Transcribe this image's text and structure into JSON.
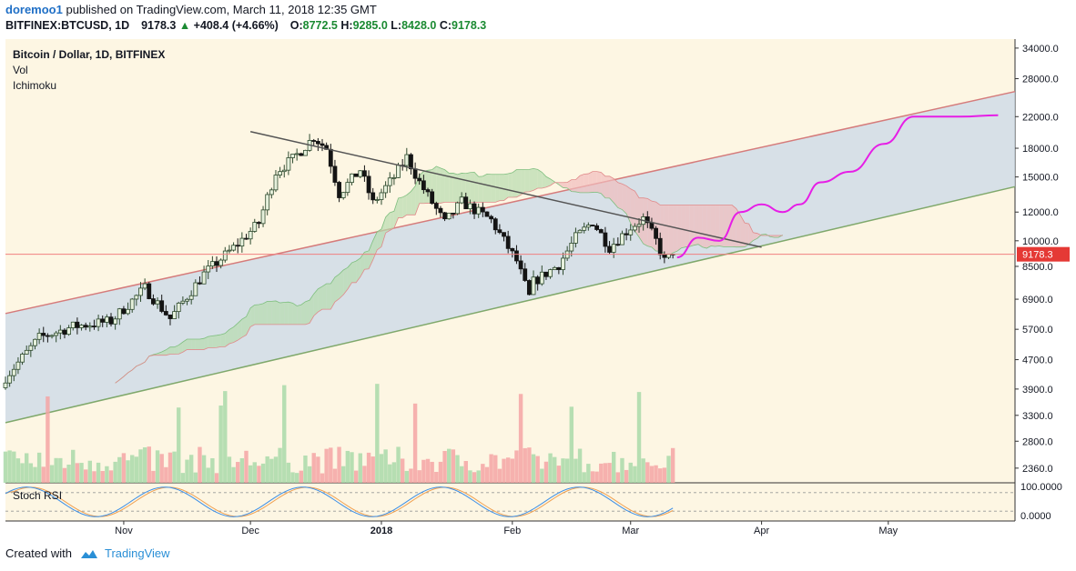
{
  "header": {
    "user": "doremoo1",
    "published": "published on TradingView.com, March 11, 2018 12:35 GMT",
    "symbol": "BITFINEX:BTCUSD, 1D",
    "last": "9178.3",
    "change": "+408.4 (+4.66%)",
    "open_label": "O:",
    "open": "8772.5",
    "high_label": "H:",
    "high": "9285.0",
    "low_label": "L:",
    "low": "8428.0",
    "close_label": "C:",
    "close": "9178.3"
  },
  "legend": {
    "title": "Bitcoin / Dollar, 1D, BITFINEX",
    "indicator1": "Vol",
    "indicator2": "Ichimoku"
  },
  "oscillator": {
    "label": "Stoch RSI",
    "top_label": "100.0000",
    "bottom_label": "0.0000"
  },
  "footer": {
    "created": "Created with",
    "brand": "TradingView"
  },
  "colors": {
    "background": "#fdf6e3",
    "up_candle": "#2e4a2e",
    "down_candle": "#141414",
    "channel_fill": "#c9d8e8",
    "channel_upper": "#d57b7b",
    "channel_lower": "#7fa86b",
    "downtrend_line": "#555555",
    "cloud_bull": "#b7dcae",
    "cloud_bear": "#f1bcbc",
    "projection": "#e61ee6",
    "price_line": "#f08080",
    "vol_up": "#a9d9a9",
    "vol_down": "#f4a5a5",
    "stoch_k": "#3b8ee6",
    "stoch_d": "#f0a050"
  },
  "chart_data": {
    "type": "candlestick",
    "scale": "log",
    "y_tick_labels": [
      34000,
      28000,
      22000,
      18000,
      15000,
      12000,
      10000,
      8500,
      6900,
      5700,
      4700,
      3900,
      3300,
      2800,
      2360
    ],
    "ylim": [
      2150,
      36000
    ],
    "x_labels": [
      {
        "label": "Nov",
        "date": "2017-11-01"
      },
      {
        "label": "Dec",
        "date": "2017-12-01"
      },
      {
        "label": "2018",
        "date": "2018-01-01"
      },
      {
        "label": "Feb",
        "date": "2018-02-01"
      },
      {
        "label": "Mar",
        "date": "2018-03-01"
      },
      {
        "label": "Apr",
        "date": "2018-04-01"
      },
      {
        "label": "May",
        "date": "2018-05-01"
      }
    ],
    "xlim": [
      "2017-10-04",
      "2018-05-31"
    ],
    "last_price": 9178.3,
    "price_keyframes": [
      [
        "2017-10-04",
        4200
      ],
      [
        "2017-10-12",
        5400
      ],
      [
        "2017-10-20",
        5800
      ],
      [
        "2017-10-29",
        6000
      ],
      [
        "2017-11-06",
        7400
      ],
      [
        "2017-11-12",
        6100
      ],
      [
        "2017-11-20",
        8100
      ],
      [
        "2017-11-28",
        9800
      ],
      [
        "2017-12-03",
        11200
      ],
      [
        "2017-12-07",
        15500
      ],
      [
        "2017-12-11",
        16800
      ],
      [
        "2017-12-16",
        19300
      ],
      [
        "2017-12-19",
        18000
      ],
      [
        "2017-12-22",
        13500
      ],
      [
        "2017-12-27",
        15700
      ],
      [
        "2017-12-30",
        12700
      ],
      [
        "2018-01-04",
        15000
      ],
      [
        "2018-01-07",
        17000
      ],
      [
        "2018-01-10",
        14500
      ],
      [
        "2018-01-16",
        11200
      ],
      [
        "2018-01-20",
        12800
      ],
      [
        "2018-01-27",
        11400
      ],
      [
        "2018-01-30",
        10000
      ],
      [
        "2018-02-02",
        8800
      ],
      [
        "2018-02-05",
        7000
      ],
      [
        "2018-02-06",
        7700
      ],
      [
        "2018-02-12",
        8600
      ],
      [
        "2018-02-16",
        10200
      ],
      [
        "2018-02-20",
        11300
      ],
      [
        "2018-02-24",
        9600
      ],
      [
        "2018-03-01",
        10900
      ],
      [
        "2018-03-04",
        11500
      ],
      [
        "2018-03-07",
        10000
      ],
      [
        "2018-03-09",
        8800
      ],
      [
        "2018-03-11",
        9178
      ]
    ],
    "channel": {
      "upper": [
        [
          "2017-10-04",
          6300
        ],
        [
          "2018-05-31",
          25800
        ]
      ],
      "lower": [
        [
          "2017-10-04",
          3150
        ],
        [
          "2018-05-31",
          14100
        ]
      ]
    },
    "downtrend": [
      [
        "2017-12-01",
        20000
      ],
      [
        "2018-04-01",
        9600
      ]
    ],
    "projection": [
      [
        "2018-03-12",
        9000
      ],
      [
        "2018-03-17",
        10200
      ],
      [
        "2018-03-22",
        10000
      ],
      [
        "2018-03-27",
        12000
      ],
      [
        "2018-04-01",
        12600
      ],
      [
        "2018-04-06",
        12000
      ],
      [
        "2018-04-10",
        12600
      ],
      [
        "2018-04-15",
        14500
      ],
      [
        "2018-04-22",
        15500
      ],
      [
        "2018-04-30",
        18500
      ],
      [
        "2018-05-07",
        22000
      ],
      [
        "2018-05-18",
        22000
      ],
      [
        "2018-05-27",
        22200
      ]
    ],
    "oscillator_range": [
      0,
      100
    ]
  }
}
